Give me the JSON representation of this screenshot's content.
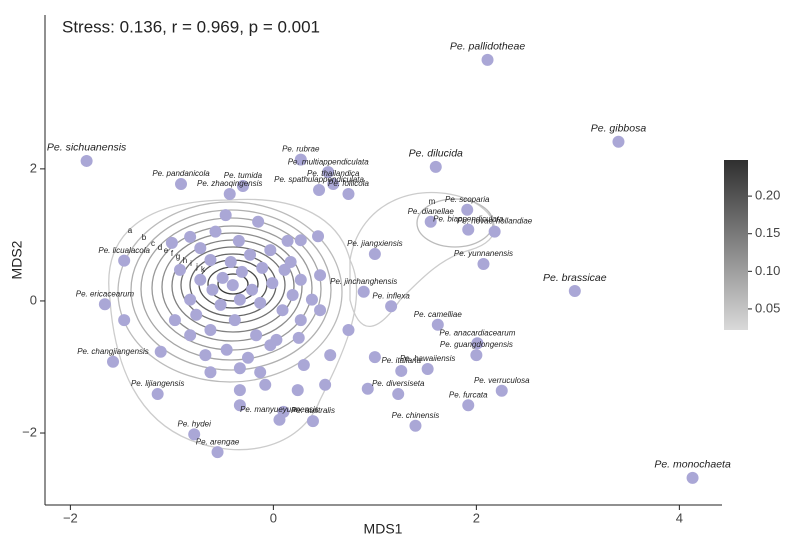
{
  "chart_data": {
    "type": "scatter",
    "title": "Stress: 0.136, r = 0.969, p = 0.001",
    "x_label": "MDS1",
    "y_label": "MDS2",
    "color": "#aaa7d6",
    "xlim": [
      -2.25,
      4.42
    ],
    "ylim": [
      -3.09,
      4.33
    ],
    "xticks": [
      {
        "value": -2,
        "label": "−2"
      },
      0,
      2,
      4
    ],
    "yticks": [
      {
        "value": -2,
        "label": "−2"
      },
      0,
      2
    ],
    "x": [
      2.11,
      3.4,
      -1.84,
      1.6,
      0.27,
      0.54,
      -0.91,
      -0.3,
      -0.43,
      0.59,
      0.45,
      0.74,
      1.91,
      1.55,
      1.92,
      2.18,
      1.0,
      2.07,
      -1.47,
      2.97,
      0.89,
      1.16,
      -1.66,
      1.62,
      2.01,
      2.0,
      -1.58,
      1.52,
      1.26,
      2.25,
      -1.14,
      1.23,
      1.92,
      0.39,
      1.4,
      -0.78,
      0.06,
      -0.55,
      4.13,
      -1.0,
      -0.82,
      -0.72,
      -0.57,
      -0.34,
      -0.15,
      0.14,
      0.27,
      0.44,
      -0.62,
      -0.42,
      -0.23,
      -0.03,
      0.17,
      -0.92,
      -0.72,
      -0.5,
      -0.31,
      -0.11,
      0.11,
      0.27,
      0.46,
      -0.82,
      -0.6,
      -0.4,
      -0.21,
      -0.01,
      0.19,
      0.38,
      -0.97,
      -0.76,
      -0.52,
      -0.33,
      -0.13,
      0.09,
      0.27,
      0.46,
      -0.82,
      -0.62,
      -0.38,
      -0.17,
      0.03,
      0.25,
      -0.67,
      -0.46,
      -0.25,
      -0.03,
      -0.33,
      -0.13,
      -0.62,
      -0.33,
      -0.08,
      0.1,
      -0.33,
      0.56,
      0.51,
      0.74,
      1.0,
      -1.47,
      0.93,
      0.24,
      0.3,
      -0.47,
      -1.11
    ],
    "values": [
      3.65,
      2.41,
      2.12,
      2.03,
      2.14,
      1.95,
      1.77,
      1.74,
      1.62,
      1.77,
      1.68,
      1.62,
      1.38,
      1.2,
      1.08,
      1.05,
      0.71,
      0.56,
      0.61,
      0.15,
      0.14,
      -0.08,
      -0.05,
      -0.36,
      -0.64,
      -0.82,
      -0.92,
      -1.03,
      -1.06,
      -1.36,
      -1.41,
      -1.41,
      -1.58,
      -1.82,
      -1.89,
      -2.02,
      -1.8,
      -2.29,
      -2.68,
      0.88,
      0.97,
      0.8,
      1.05,
      0.91,
      1.2,
      0.91,
      0.92,
      0.98,
      0.62,
      0.59,
      0.7,
      0.77,
      0.59,
      0.47,
      0.32,
      0.35,
      0.44,
      0.5,
      0.47,
      0.32,
      0.39,
      0.02,
      0.17,
      0.24,
      0.17,
      0.27,
      0.09,
      0.02,
      -0.29,
      -0.21,
      -0.06,
      0.02,
      -0.03,
      -0.14,
      -0.29,
      -0.14,
      -0.52,
      -0.44,
      -0.29,
      -0.52,
      -0.59,
      -0.56,
      -0.82,
      -0.74,
      -0.86,
      -0.67,
      -1.02,
      -1.08,
      -1.08,
      -1.35,
      -1.27,
      -1.68,
      -1.58,
      -0.82,
      -1.27,
      -0.44,
      -0.85,
      -0.29,
      -1.33,
      -1.35,
      -0.97,
      1.3,
      -0.77
    ],
    "labels": [
      "Pe. pallidotheae",
      "Pe. gibbosa",
      "Pe. sichuanensis",
      "Pe. dilucida",
      "Pe. rubrae",
      "Pe. multiappendiculata",
      "Pe. pandanicola",
      "Pe. tumida",
      "Pe. zhaoqingensis",
      "Pe. thailandica",
      "Pe. spathulappendiculata",
      "Pe. follicola",
      "Pe. scoparia",
      "Pe. dianellae",
      "Pe. biappendiculata",
      "Pe. novae-hollandiae",
      "Pe. jiangxiensis",
      "Pe. yunnanensis",
      "Pe. licualacola",
      "Pe. brassicae",
      "Pe. jinchanghensis",
      "Pe. inflexa",
      "Pe. ericacearum",
      "Pe. camelliae",
      "Pe. anacardiacearum",
      "Pe. guangdongensis",
      "Pe. changjiangensis",
      "Pe. hawaiiensis",
      "Pe. italiana",
      "Pe. verruculosa",
      "Pe. lijiangensis",
      "Pe. diversiseta",
      "Pe. furcata",
      "Pe. australis",
      "Pe. chinensis",
      "Pe. hydei",
      "Pe. manyueyuanensis",
      "Pe. arengae",
      "Pe. monochaeta",
      null,
      null,
      null,
      null,
      null,
      null,
      null,
      null,
      null,
      null,
      null,
      null,
      null,
      null,
      null,
      null,
      null,
      null,
      null,
      null,
      null,
      null,
      null,
      null,
      null,
      null,
      null,
      null,
      null,
      null,
      null,
      null,
      null,
      null,
      null,
      null,
      null,
      null,
      null,
      null,
      null,
      null,
      null,
      null,
      null,
      null,
      null,
      null,
      null,
      null,
      null,
      null,
      null,
      null,
      null,
      null,
      null,
      null,
      null,
      null,
      null,
      null,
      null,
      null,
      null
    ],
    "contour_labels": [
      "a",
      "b",
      "c",
      "d",
      "e",
      "f",
      "g",
      "h",
      "i",
      "j",
      "k",
      "m"
    ],
    "colorbar": {
      "lim": [
        0.022,
        0.248
      ],
      "colors": [
        "#d9d9d9",
        "#2f2f2f"
      ],
      "ticks": [
        0.05,
        {
          "value": 0.1,
          "label": "0.10"
        },
        0.15,
        {
          "value": 0.2,
          "label": "0.20"
        }
      ]
    }
  }
}
